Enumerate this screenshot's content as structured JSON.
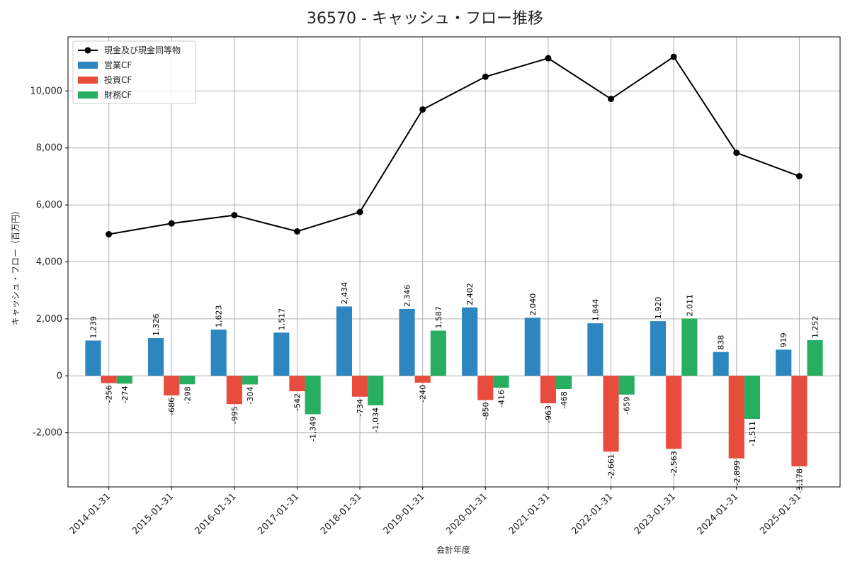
{
  "chart_data": {
    "type": "bar+line",
    "title": "36570 - キャッシュ・フロー推移",
    "xlabel": "会計年度",
    "ylabel": "キャッシュ・フロー（百万円）",
    "ylim": [
      -3900,
      11900
    ],
    "yticks": [
      -2000,
      0,
      2000,
      4000,
      6000,
      8000,
      10000
    ],
    "ytick_labels": [
      "-2,000",
      "0",
      "2,000",
      "4,000",
      "6,000",
      "8,000",
      "10,000"
    ],
    "grid": true,
    "legend_position": "top-left",
    "categories": [
      "2014-01-31",
      "2015-01-31",
      "2016-01-31",
      "2017-01-31",
      "2018-01-31",
      "2019-01-31",
      "2020-01-31",
      "2021-01-31",
      "2022-01-31",
      "2023-01-31",
      "2024-01-31",
      "2025-01-31"
    ],
    "line": {
      "name": "現金及び現金同等物",
      "color": "#000000",
      "values": [
        4970,
        5350,
        5640,
        5070,
        5750,
        9350,
        10500,
        11150,
        9720,
        11200,
        7830,
        7010
      ]
    },
    "series": [
      {
        "name": "営業CF",
        "color": "#2e86c1",
        "values": [
          1239,
          1326,
          1623,
          1517,
          2434,
          2346,
          2402,
          2040,
          1844,
          1920,
          838,
          919
        ],
        "labels": [
          "1,239",
          "1,326",
          "1,623",
          "1,517",
          "2,434",
          "2,346",
          "2,402",
          "2,040",
          "1,844",
          "1,920",
          "838",
          "919"
        ]
      },
      {
        "name": "投資CF",
        "color": "#e74c3c",
        "values": [
          -256,
          -686,
          -995,
          -542,
          -734,
          -240,
          -850,
          -963,
          -2661,
          -2563,
          -2899,
          -3178
        ],
        "labels": [
          "-256",
          "-686",
          "-995",
          "-542",
          "-734",
          "-240",
          "-850",
          "-963",
          "-2,661",
          "-2,563",
          "-2,899",
          "-3,178"
        ]
      },
      {
        "name": "財務CF",
        "color": "#27ae60",
        "values": [
          -274,
          -298,
          -304,
          -1349,
          -1034,
          1587,
          -416,
          -468,
          -659,
          2011,
          -1511,
          1252
        ],
        "labels": [
          "-274",
          "-298",
          "-304",
          "-1,349",
          "-1,034",
          "1,587",
          "-416",
          "-468",
          "-659",
          "2,011",
          "-1,511",
          "1,252"
        ]
      }
    ]
  }
}
